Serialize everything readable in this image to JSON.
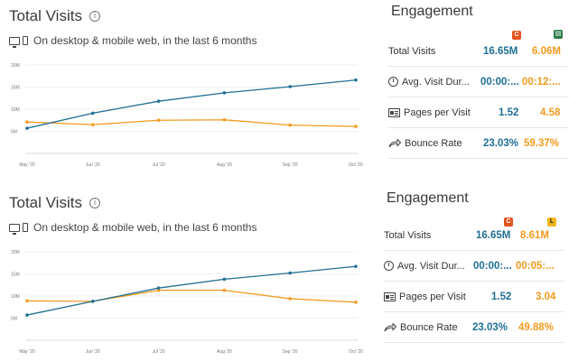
{
  "panels": [
    {
      "title": "Total Visits",
      "subtitle": "On desktop & mobile web, in the last 6 months",
      "engagement": {
        "title": "Engagement",
        "sites": [
          {
            "icon": "c-logo-icon",
            "letter": "C",
            "color": "#e2541e"
          },
          {
            "icon": "green-site-icon",
            "letter": "▤",
            "color": "#2e7d4a"
          }
        ],
        "rows": [
          {
            "label": "Total Visits",
            "v1": "16.65M",
            "v2": "6.06M"
          },
          {
            "label": "Avg. Visit Dur...",
            "v1": "00:00:...",
            "v2": "00:12:..."
          },
          {
            "label": "Pages per Visit",
            "v1": "1.52",
            "v2": "4.58"
          },
          {
            "label": "Bounce Rate",
            "v1": "23.03%",
            "v2": "59.37%"
          }
        ]
      }
    },
    {
      "title": "Total Visits",
      "subtitle": "On desktop & mobile web, in the last 6 months",
      "engagement": {
        "title": "Engagement",
        "sites": [
          {
            "icon": "c-logo-icon",
            "letter": "C",
            "color": "#e2541e"
          },
          {
            "icon": "yellow-site-icon",
            "letter": "L",
            "color": "#f2b81b"
          }
        ],
        "rows": [
          {
            "label": "Total Visits",
            "v1": "16.65M",
            "v2": "8.61M"
          },
          {
            "label": "Avg. Visit Dur...",
            "v1": "00:00:...",
            "v2": "00:05:..."
          },
          {
            "label": "Pages per Visit",
            "v1": "1.52",
            "v2": "3.04"
          },
          {
            "label": "Bounce Rate",
            "v1": "23.03%",
            "v2": "49.88%"
          }
        ]
      }
    }
  ],
  "chart_data": [
    {
      "type": "line",
      "x": [
        "May '20",
        "Jun '20",
        "Jul '20",
        "Aug '20",
        "Sep '20",
        "Oct '20"
      ],
      "yticks": [
        "5M",
        "10M",
        "15M",
        "20M"
      ],
      "ylim": [
        0,
        20
      ],
      "series": [
        {
          "color": "#1f6f93",
          "values": [
            5.7,
            9.1,
            11.8,
            13.7,
            15.1,
            16.6
          ]
        },
        {
          "color": "#f39a1e",
          "values": [
            7.1,
            6.5,
            7.5,
            7.6,
            6.4,
            6.1
          ]
        }
      ]
    },
    {
      "type": "line",
      "x": [
        "May '20",
        "Jun '20",
        "Jul '20",
        "Aug '20",
        "Sep '20",
        "Oct '20"
      ],
      "yticks": [
        "5M",
        "10M",
        "15M",
        "20M"
      ],
      "ylim": [
        0,
        20
      ],
      "series": [
        {
          "color": "#1f6f93",
          "values": [
            5.7,
            8.8,
            11.8,
            13.8,
            15.2,
            16.7
          ]
        },
        {
          "color": "#f39a1e",
          "values": [
            8.9,
            8.8,
            11.3,
            11.3,
            9.4,
            8.6
          ]
        }
      ]
    }
  ]
}
